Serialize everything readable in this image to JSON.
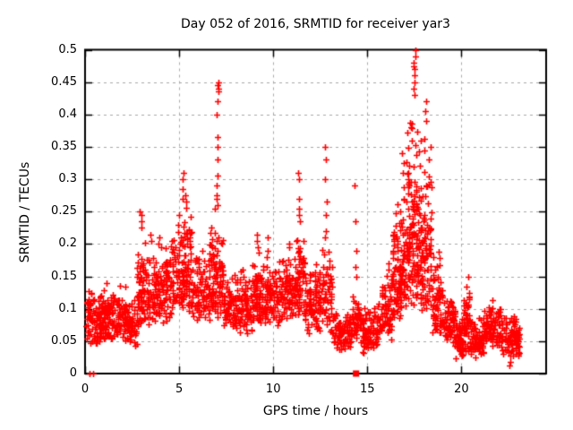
{
  "figure_bg": "#ffffff",
  "frame_color": "#000000",
  "grid_color": "#a8a8a8",
  "chart_data": {
    "type": "scatter",
    "title": "Day 052 of 2016, SRMTID for receiver yar3",
    "xlabel": "GPS time / hours",
    "ylabel": "SRMTID / TECUs",
    "xlim": [
      0,
      24.5
    ],
    "ylim": [
      0,
      0.5
    ],
    "grid": true,
    "legend": "none",
    "xticks": {
      "values": [
        0,
        5,
        10,
        15,
        20
      ],
      "labels": [
        "0",
        "5",
        "10",
        "15",
        "20"
      ]
    },
    "yticks": {
      "values": [
        0,
        0.05,
        0.1,
        0.15,
        0.2,
        0.25,
        0.3,
        0.35,
        0.4,
        0.45,
        0.5
      ],
      "labels": [
        "0",
        "0.05",
        "0.1",
        "0.15",
        "0.2",
        "0.25",
        "0.3",
        "0.35",
        "0.4",
        "0.45",
        "0.5"
      ]
    },
    "marker": {
      "shape": "plus",
      "color": "#ff0000",
      "size": 7
    },
    "seed": 20160052,
    "point_distribution_bands": [
      {
        "t": [
          0.05,
          1.0
        ],
        "y": [
          0.045,
          0.135
        ],
        "n": 110,
        "bias": 1.3
      },
      {
        "t": [
          1.0,
          2.2
        ],
        "y": [
          0.05,
          0.145
        ],
        "n": 130,
        "bias": 1.3
      },
      {
        "t": [
          2.2,
          2.75
        ],
        "y": [
          0.04,
          0.125
        ],
        "n": 55,
        "bias": 1.3
      },
      {
        "t": [
          2.75,
          3.3
        ],
        "y": [
          0.07,
          0.22
        ],
        "n": 70,
        "bias": 1.4
      },
      {
        "t": [
          3.3,
          4.25
        ],
        "y": [
          0.075,
          0.2
        ],
        "n": 95,
        "bias": 1.4
      },
      {
        "t": [
          4.25,
          4.85
        ],
        "y": [
          0.08,
          0.225
        ],
        "n": 65,
        "bias": 1.4
      },
      {
        "t": [
          4.85,
          5.65
        ],
        "y": [
          0.095,
          0.26
        ],
        "n": 115,
        "bias": 1.4
      },
      {
        "t": [
          5.65,
          6.6
        ],
        "y": [
          0.08,
          0.185
        ],
        "n": 85,
        "bias": 1.3
      },
      {
        "t": [
          6.6,
          7.35
        ],
        "y": [
          0.085,
          0.25
        ],
        "n": 95,
        "bias": 1.4
      },
      {
        "t": [
          7.35,
          8.2
        ],
        "y": [
          0.07,
          0.155
        ],
        "n": 85,
        "bias": 1.3
      },
      {
        "t": [
          8.2,
          8.85
        ],
        "y": [
          0.06,
          0.16
        ],
        "n": 70,
        "bias": 1.3
      },
      {
        "t": [
          8.85,
          9.5
        ],
        "y": [
          0.075,
          0.19
        ],
        "n": 85,
        "bias": 1.3
      },
      {
        "t": [
          9.5,
          10.3
        ],
        "y": [
          0.07,
          0.175
        ],
        "n": 85,
        "bias": 1.3
      },
      {
        "t": [
          10.3,
          11.05
        ],
        "y": [
          0.08,
          0.19
        ],
        "n": 85,
        "bias": 1.3
      },
      {
        "t": [
          11.05,
          11.65
        ],
        "y": [
          0.09,
          0.225
        ],
        "n": 70,
        "bias": 1.4
      },
      {
        "t": [
          11.65,
          12.45
        ],
        "y": [
          0.06,
          0.175
        ],
        "n": 85,
        "bias": 1.3
      },
      {
        "t": [
          12.45,
          13.15
        ],
        "y": [
          0.06,
          0.2
        ],
        "n": 70,
        "bias": 1.4
      },
      {
        "t": [
          13.15,
          14.2
        ],
        "y": [
          0.035,
          0.105
        ],
        "n": 95,
        "bias": 1.2
      },
      {
        "t": [
          14.2,
          14.65
        ],
        "y": [
          0.05,
          0.125
        ],
        "n": 45,
        "bias": 1.2
      },
      {
        "t": [
          14.65,
          15.55
        ],
        "y": [
          0.03,
          0.105
        ],
        "n": 90,
        "bias": 1.2
      },
      {
        "t": [
          15.55,
          16.3
        ],
        "y": [
          0.05,
          0.155
        ],
        "n": 75,
        "bias": 1.3
      },
      {
        "t": [
          16.3,
          17.05
        ],
        "y": [
          0.085,
          0.3
        ],
        "n": 120,
        "bias": 1.5
      },
      {
        "t": [
          17.05,
          17.75
        ],
        "y": [
          0.1,
          0.42
        ],
        "n": 130,
        "bias": 1.5
      },
      {
        "t": [
          17.75,
          18.45
        ],
        "y": [
          0.09,
          0.38
        ],
        "n": 105,
        "bias": 1.5
      },
      {
        "t": [
          18.45,
          19.05
        ],
        "y": [
          0.06,
          0.2
        ],
        "n": 70,
        "bias": 1.4
      },
      {
        "t": [
          19.05,
          19.65
        ],
        "y": [
          0.04,
          0.125
        ],
        "n": 70,
        "bias": 1.2
      },
      {
        "t": [
          19.65,
          20.1
        ],
        "y": [
          0.02,
          0.09
        ],
        "n": 55,
        "bias": 1.1
      },
      {
        "t": [
          20.1,
          20.45
        ],
        "y": [
          0.03,
          0.145
        ],
        "n": 55,
        "bias": 1.2
      },
      {
        "t": [
          20.45,
          21.2
        ],
        "y": [
          0.025,
          0.09
        ],
        "n": 80,
        "bias": 1.2
      },
      {
        "t": [
          21.2,
          22.1
        ],
        "y": [
          0.04,
          0.115
        ],
        "n": 95,
        "bias": 1.3
      },
      {
        "t": [
          22.1,
          23.1
        ],
        "y": [
          0.02,
          0.095
        ],
        "n": 95,
        "bias": 1.2
      }
    ],
    "spike_columns": [
      {
        "t": 2.95,
        "ys": [
          0.225,
          0.235,
          0.245,
          0.25
        ]
      },
      {
        "t": 3.5,
        "ys": [
          0.205,
          0.215
        ]
      },
      {
        "t": 3.95,
        "ys": [
          0.2,
          0.21
        ]
      },
      {
        "t": 5.2,
        "ys": [
          0.27,
          0.285,
          0.3,
          0.31
        ]
      },
      {
        "t": 5.35,
        "ys": [
          0.265,
          0.275
        ]
      },
      {
        "t": 6.2,
        "ys": [
          0.19
        ]
      },
      {
        "t": 6.95,
        "ys": [
          0.255,
          0.27
        ]
      },
      {
        "t": 7.05,
        "ys": [
          0.26,
          0.275,
          0.29,
          0.305,
          0.33,
          0.35,
          0.365,
          0.4,
          0.42,
          0.435,
          0.44,
          0.445,
          0.45
        ]
      },
      {
        "t": 8.4,
        "ys": [
          0.15,
          0.16
        ]
      },
      {
        "t": 9.15,
        "ys": [
          0.195,
          0.205,
          0.215
        ]
      },
      {
        "t": 9.7,
        "ys": [
          0.18,
          0.19,
          0.21
        ]
      },
      {
        "t": 10.8,
        "ys": [
          0.195,
          0.2
        ]
      },
      {
        "t": 11.35,
        "ys": [
          0.235,
          0.245,
          0.255,
          0.27,
          0.3,
          0.31
        ]
      },
      {
        "t": 12.8,
        "ys": [
          0.21,
          0.22,
          0.245,
          0.265,
          0.3,
          0.33,
          0.35
        ]
      },
      {
        "t": 14.35,
        "ys": [
          0.15,
          0.165,
          0.19,
          0.235,
          0.29
        ]
      },
      {
        "t": 16.1,
        "ys": [
          0.16,
          0.17
        ]
      },
      {
        "t": 16.9,
        "ys": [
          0.31,
          0.325,
          0.34
        ]
      },
      {
        "t": 17.3,
        "ys": [
          0.36,
          0.38
        ]
      },
      {
        "t": 17.5,
        "ys": [
          0.43,
          0.44,
          0.45,
          0.46,
          0.47,
          0.475,
          0.48,
          0.49,
          0.5
        ]
      },
      {
        "t": 18.1,
        "ys": [
          0.39,
          0.405,
          0.42
        ]
      },
      {
        "t": 18.35,
        "ys": [
          0.35
        ]
      },
      {
        "t": 20.3,
        "ys": [
          0.15
        ]
      },
      {
        "t": 22.6,
        "ys": [
          0.012,
          0.018
        ]
      }
    ],
    "zero_value_points": [
      [
        0.25,
        0
      ],
      [
        0.45,
        0
      ]
    ],
    "square_marker_point": {
      "t": 14.4,
      "v": 0,
      "color": "#ff0000",
      "size": 7
    }
  }
}
